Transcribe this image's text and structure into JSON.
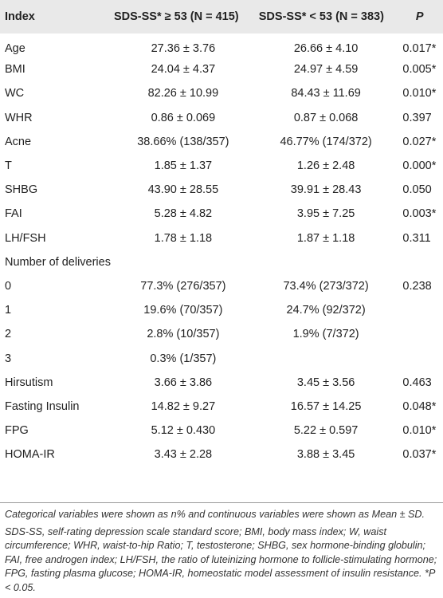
{
  "table": {
    "headers": {
      "index": "Index",
      "group1": "SDS-SS* ≥ 53 (N = 415)",
      "group2": "SDS-SS* < 53 (N = 383)",
      "p": "P"
    },
    "rows": [
      {
        "label": "Age",
        "g1": "27.36 ± 3.76",
        "g2": "26.66 ± 4.10",
        "p": "0.017*"
      },
      {
        "label": "BMI",
        "g1": "24.04 ± 4.37",
        "g2": "24.97 ± 4.59",
        "p": "0.005*"
      },
      {
        "label": "WC",
        "g1": "82.26 ± 10.99",
        "g2": "84.43 ± 11.69",
        "p": "0.010*"
      },
      {
        "label": "WHR",
        "g1": "0.86 ± 0.069",
        "g2": "0.87 ± 0.068",
        "p": "0.397"
      },
      {
        "label": "Acne",
        "g1": "38.66% (138/357)",
        "g2": "46.77% (174/372)",
        "p": "0.027*"
      },
      {
        "label": "T",
        "g1": "1.85 ± 1.37",
        "g2": "1.26 ± 2.48",
        "p": "0.000*"
      },
      {
        "label": "SHBG",
        "g1": "43.90 ± 28.55",
        "g2": "39.91 ± 28.43",
        "p": "0.050"
      },
      {
        "label": "FAI",
        "g1": "5.28 ± 4.82",
        "g2": "3.95 ± 7.25",
        "p": "0.003*"
      },
      {
        "label": "LH/FSH",
        "g1": "1.78 ± 1.18",
        "g2": "1.87 ± 1.18",
        "p": "0.311"
      },
      {
        "label": "Number of deliveries",
        "g1": "",
        "g2": "",
        "p": ""
      },
      {
        "label": "0",
        "g1": "77.3% (276/357)",
        "g2": "73.4% (273/372)",
        "p": "0.238"
      },
      {
        "label": "1",
        "g1": "19.6% (70/357)",
        "g2": "24.7% (92/372)",
        "p": ""
      },
      {
        "label": "2",
        "g1": "2.8% (10/357)",
        "g2": "1.9% (7/372)",
        "p": ""
      },
      {
        "label": "3",
        "g1": "0.3% (1/357)",
        "g2": "",
        "p": ""
      },
      {
        "label": "Hirsutism",
        "g1": "3.66 ± 3.86",
        "g2": "3.45 ± 3.56",
        "p": "0.463"
      },
      {
        "label": "Fasting Insulin",
        "g1": "14.82 ± 9.27",
        "g2": "16.57 ± 14.25",
        "p": "0.048*"
      },
      {
        "label": "FPG",
        "g1": "5.12 ± 0.430",
        "g2": "5.22 ± 0.597",
        "p": "0.010*"
      },
      {
        "label": "HOMA-IR",
        "g1": "3.43 ± 2.28",
        "g2": "3.88 ± 3.45",
        "p": "0.037*"
      }
    ]
  },
  "notes": {
    "line1": "Categorical variables were shown as n% and continuous variables were shown as Mean ± SD.",
    "line2": "SDS-SS, self-rating depression scale standard score; BMI, body mass index; W, waist circumference; WHR, waist-to-hip Ratio; T, testosterone; SHBG, sex hormone-binding globulin; FAI, free androgen index; LH/FSH, the ratio of luteinizing hormone to follicle-stimulating hormone; FPG, fasting plasma glucose; HOMA-IR, homeostatic model assessment of insulin resistance. *P < 0.05."
  }
}
